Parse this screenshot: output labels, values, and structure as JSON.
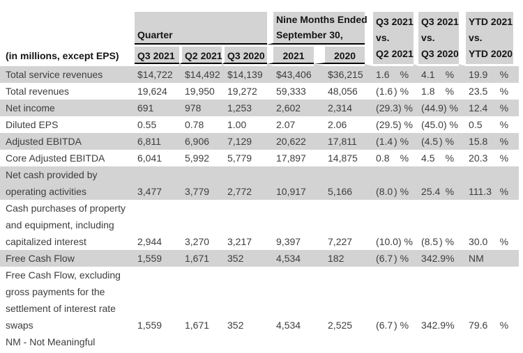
{
  "title_note": "(in millions, except EPS)",
  "header": {
    "quarter_group": "Quarter",
    "nine_months_group": "Nine Months Ended\nSeptember 30,",
    "quarter_cols": [
      "Q3 2021",
      "Q2 2021",
      "Q3 2020"
    ],
    "nine_months_cols": [
      "2021",
      "2020"
    ],
    "vs_cols": [
      "Q3 2021\nvs.\nQ2 2021",
      "Q3 2021\nvs.\nQ3 2020",
      "YTD 2021\nvs.\nYTD 2020"
    ]
  },
  "rows": [
    {
      "label": "Total service revenues",
      "shaded": true,
      "values": [
        "$14,722",
        "$14,492",
        "$14,139",
        "$43,406",
        "$36,215"
      ],
      "pcts": [
        [
          "1.6",
          "%"
        ],
        [
          "4.1",
          "%"
        ],
        [
          "19.9",
          "%"
        ]
      ]
    },
    {
      "label": "Total revenues",
      "shaded": false,
      "values": [
        "19,624",
        "19,950",
        "19,272",
        "59,333",
        "48,056"
      ],
      "pcts": [
        [
          "(1.6",
          ") %"
        ],
        [
          "1.8",
          "%"
        ],
        [
          "23.5",
          "%"
        ]
      ]
    },
    {
      "label": "Net income",
      "shaded": true,
      "values": [
        "691",
        "978",
        "1,253",
        "2,602",
        "2,314"
      ],
      "pcts": [
        [
          "(29.3",
          ") %"
        ],
        [
          "(44.9",
          ") %"
        ],
        [
          "12.4",
          "%"
        ]
      ]
    },
    {
      "label": "Diluted EPS",
      "shaded": false,
      "values": [
        "0.55",
        "0.78",
        "1.00",
        "2.07",
        "2.06"
      ],
      "pcts": [
        [
          "(29.5",
          ") %"
        ],
        [
          "(45.0",
          ") %"
        ],
        [
          "0.5",
          "%"
        ]
      ]
    },
    {
      "label": "Adjusted EBITDA",
      "shaded": true,
      "values": [
        "6,811",
        "6,906",
        "7,129",
        "20,622",
        "17,811"
      ],
      "pcts": [
        [
          "(1.4",
          ") %"
        ],
        [
          "(4.5",
          ") %"
        ],
        [
          "15.8",
          "%"
        ]
      ]
    },
    {
      "label": "Core Adjusted EBITDA",
      "shaded": false,
      "values": [
        "6,041",
        "5,992",
        "5,779",
        "17,897",
        "14,875"
      ],
      "pcts": [
        [
          "0.8",
          "%"
        ],
        [
          "4.5",
          "%"
        ],
        [
          "20.3",
          "%"
        ]
      ]
    },
    {
      "label": "Net cash provided by\noperating activities",
      "shaded": true,
      "values": [
        "3,477",
        "3,779",
        "2,772",
        "10,917",
        "5,166"
      ],
      "pcts": [
        [
          "(8.0",
          ") %"
        ],
        [
          "25.4",
          "%"
        ],
        [
          "111.3",
          "%"
        ]
      ]
    },
    {
      "label": "Cash purchases of property\nand equipment, including\ncapitalized interest",
      "shaded": false,
      "values": [
        "2,944",
        "3,270",
        "3,217",
        "9,397",
        "7,227"
      ],
      "pcts": [
        [
          "(10.0",
          ") %"
        ],
        [
          "(8.5",
          ") %"
        ],
        [
          "30.0",
          "%"
        ]
      ]
    },
    {
      "label": "Free Cash Flow",
      "shaded": true,
      "values": [
        "1,559",
        "1,671",
        "352",
        "4,534",
        "182"
      ],
      "pcts": [
        [
          "(6.7",
          ") %"
        ],
        [
          "342.9",
          "%"
        ],
        [
          "NM",
          ""
        ]
      ]
    },
    {
      "label": "Free Cash Flow, excluding\ngross payments for the\nsettlement of interest rate\nswaps",
      "shaded": false,
      "values": [
        "1,559",
        "1,671",
        "352",
        "4,534",
        "2,525"
      ],
      "pcts": [
        [
          "(6.7",
          ") %"
        ],
        [
          "342.9",
          "%"
        ],
        [
          "79.6",
          "%"
        ]
      ]
    }
  ],
  "footnote": "NM - Not Meaningful",
  "colors": {
    "band": "#d3d3d3",
    "rule": "#000000",
    "header_text": "#141414",
    "body_text": "#3d3d3d",
    "background": "#ffffff"
  }
}
